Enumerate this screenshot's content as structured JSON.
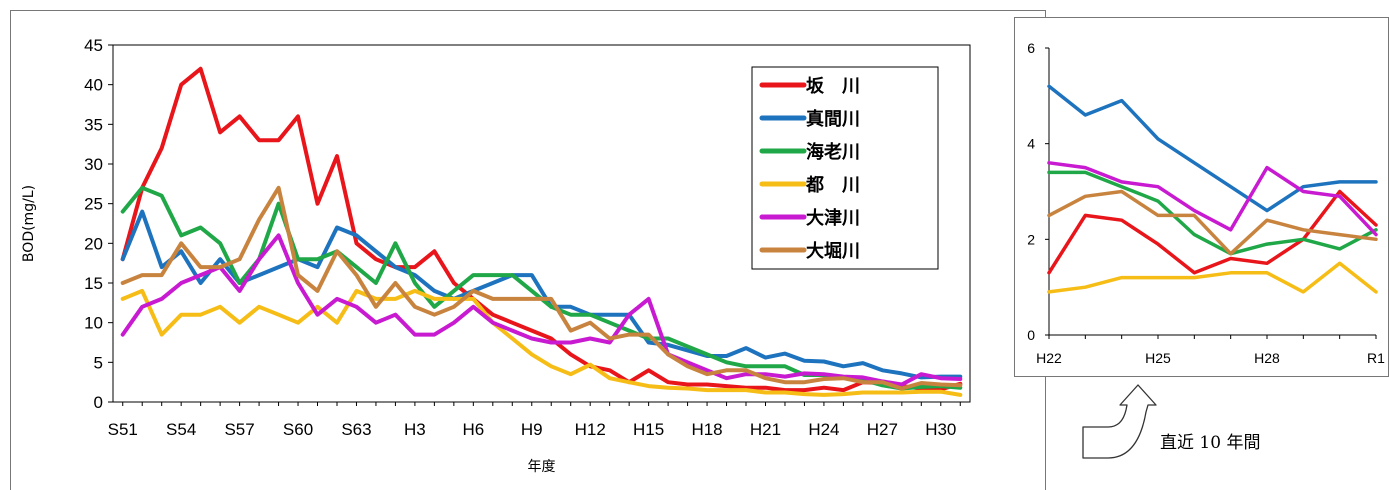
{
  "main_chart": {
    "chart_data": {
      "type": "line",
      "xlabel": "年度",
      "ylabel": "BOD(mg/L)",
      "ylim": [
        0,
        45
      ],
      "yticks": [
        0,
        5,
        10,
        15,
        20,
        25,
        30,
        35,
        40,
        45
      ],
      "x_labels_shown": [
        "S51",
        "S54",
        "S57",
        "S60",
        "S63",
        "H3",
        "H6",
        "H9",
        "H12",
        "H15",
        "H18",
        "H21",
        "H24",
        "H27",
        "H30"
      ],
      "x_count": 44,
      "grid": false,
      "legend_position": "top-right",
      "series": [
        {
          "name": "坂　川",
          "color": "#e8151b",
          "values": [
            18,
            27,
            32,
            40,
            42,
            34,
            36,
            33,
            33,
            36,
            25,
            31,
            20,
            18,
            17,
            17,
            19,
            15,
            13,
            11,
            10,
            9,
            8,
            6,
            4.5,
            4,
            2.5,
            4,
            2.5,
            2.2,
            2.2,
            2,
            1.8,
            1.8,
            1.5,
            1.5,
            1.8,
            1.5,
            2.5,
            2.4,
            2,
            1.7,
            1.6,
            2.3
          ]
        },
        {
          "name": "真間川",
          "color": "#1e73be",
          "values": [
            18,
            24,
            17,
            19,
            15,
            18,
            15,
            16,
            17,
            18,
            17,
            22,
            21,
            19,
            17,
            16,
            14,
            13,
            14,
            15,
            16,
            16,
            12,
            12,
            11,
            11,
            11,
            7.5,
            7.2,
            6.5,
            5.8,
            5.8,
            6.8,
            5.6,
            6.1,
            5.2,
            5.1,
            4.5,
            4.9,
            4,
            3.6,
            3.1,
            3.2,
            3.2
          ]
        },
        {
          "name": "海老川",
          "color": "#20a848",
          "values": [
            24,
            27,
            26,
            21,
            22,
            20,
            15,
            18,
            25,
            18,
            18,
            19,
            17,
            15,
            20,
            15,
            12,
            14,
            16,
            16,
            16,
            14,
            12,
            11,
            11,
            10,
            9,
            8,
            8,
            7,
            6,
            5,
            4.5,
            4.5,
            4.5,
            3.4,
            3.4,
            3.1,
            2.8,
            2.1,
            1.7,
            1.9,
            2,
            1.8
          ]
        },
        {
          "name": "都　川",
          "color": "#f6bd16",
          "values": [
            13,
            14,
            8.5,
            11,
            11,
            12,
            10,
            12,
            11,
            10,
            12,
            10,
            14,
            13,
            13,
            14,
            13,
            13,
            13,
            10,
            8,
            6,
            4.5,
            3.5,
            4.7,
            3,
            2.5,
            2,
            1.8,
            1.7,
            1.5,
            1.5,
            1.5,
            1.2,
            1.2,
            1,
            0.9,
            1,
            1.2,
            1.2,
            1.2,
            1.3,
            1.3,
            0.9
          ]
        },
        {
          "name": "大津川",
          "color": "#c81ad0",
          "values": [
            8.5,
            12,
            13,
            15,
            16,
            17,
            14,
            18,
            21,
            15,
            11,
            13,
            12,
            10,
            11,
            8.5,
            8.5,
            10,
            12,
            10,
            9,
            8,
            7.5,
            7.5,
            8,
            7.5,
            11,
            13,
            6,
            5,
            4,
            3,
            3.5,
            3.5,
            3.2,
            3.6,
            3.5,
            3.2,
            3.1,
            2.6,
            2.2,
            3.5,
            3,
            2.9
          ]
        },
        {
          "name": "大堀川",
          "color": "#c8843f",
          "values": [
            15,
            16,
            16,
            20,
            17,
            17,
            18,
            23,
            27,
            16,
            14,
            19,
            16,
            12,
            15,
            12,
            11,
            12,
            14,
            13,
            13,
            13,
            13,
            9,
            10,
            8,
            8.5,
            8.5,
            6,
            4.5,
            3.5,
            4,
            4,
            3,
            2.5,
            2.5,
            2.9,
            3,
            2.5,
            2.5,
            1.7,
            2.4,
            2.2,
            2.1
          ]
        }
      ]
    }
  },
  "inset_chart": {
    "chart_data": {
      "type": "line",
      "ylim": [
        0,
        6
      ],
      "yticks": [
        0,
        2,
        4,
        6
      ],
      "x_labels_shown": [
        "H22",
        "H25",
        "H28",
        "R1"
      ],
      "x_count": 10,
      "grid": false,
      "series": [
        {
          "name": "坂　川",
          "color": "#e8151b",
          "values": [
            1.3,
            2.5,
            2.4,
            1.9,
            1.3,
            1.6,
            1.5,
            2,
            3,
            2.3
          ]
        },
        {
          "name": "真間川",
          "color": "#1e73be",
          "values": [
            5.2,
            4.6,
            4.9,
            4.1,
            3.6,
            3.1,
            2.6,
            3.1,
            3.2,
            3.2
          ]
        },
        {
          "name": "海老川",
          "color": "#20a848",
          "values": [
            3.4,
            3.4,
            3.1,
            2.8,
            2.1,
            1.7,
            1.9,
            2,
            1.8,
            2.2
          ]
        },
        {
          "name": "都　川",
          "color": "#f6bd16",
          "values": [
            0.9,
            1,
            1.2,
            1.2,
            1.2,
            1.3,
            1.3,
            0.9,
            1.5,
            0.9
          ]
        },
        {
          "name": "大津川",
          "color": "#c81ad0",
          "values": [
            3.6,
            3.5,
            3.2,
            3.1,
            2.6,
            2.2,
            3.5,
            3,
            2.9,
            2.1
          ]
        },
        {
          "name": "大堀川",
          "color": "#c8843f",
          "values": [
            2.5,
            2.9,
            3,
            2.5,
            2.5,
            1.7,
            2.4,
            2.2,
            2.1,
            2
          ]
        }
      ]
    }
  },
  "annotation": {
    "caption": "直近 10 年間",
    "icon": "up-turn-arrow-icon"
  }
}
